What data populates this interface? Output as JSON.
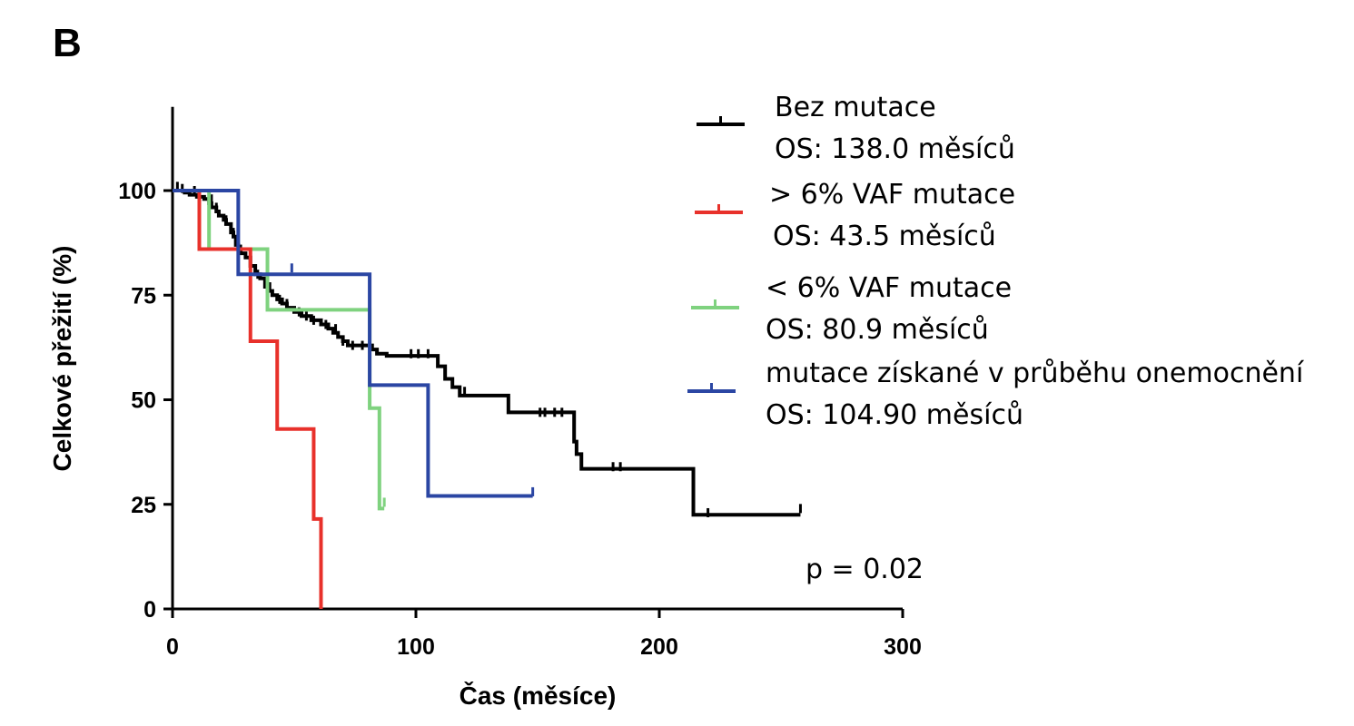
{
  "panel_label": "B",
  "p_value_text": "p = 0.02",
  "chart_data": {
    "type": "line",
    "subtype": "kaplan-meier",
    "title": "",
    "xlabel": "Čas  (měsíce)",
    "ylabel": "Celkové přežití (%)",
    "xlim": [
      0,
      300
    ],
    "ylim": [
      0,
      120
    ],
    "xticks": [
      0,
      100,
      200,
      300
    ],
    "yticks": [
      0,
      25,
      50,
      75,
      100
    ],
    "grid": false,
    "legend_position": "top-right",
    "series": [
      {
        "name": "Bez mutace",
        "stat": "OS: 138.0 měsíců",
        "color": "#000000",
        "steps": [
          [
            0,
            100
          ],
          [
            5,
            99.5
          ],
          [
            7,
            99
          ],
          [
            10,
            98.5
          ],
          [
            13,
            98
          ],
          [
            15,
            97
          ],
          [
            16,
            96
          ],
          [
            18,
            95
          ],
          [
            19,
            94
          ],
          [
            21,
            93
          ],
          [
            22,
            92
          ],
          [
            24,
            90
          ],
          [
            25,
            89
          ],
          [
            26,
            87
          ],
          [
            27,
            86
          ],
          [
            28,
            85
          ],
          [
            30,
            84
          ],
          [
            32,
            82
          ],
          [
            34,
            80
          ],
          [
            36,
            79
          ],
          [
            38,
            77
          ],
          [
            39,
            76
          ],
          [
            41,
            75
          ],
          [
            43,
            74
          ],
          [
            45,
            73
          ],
          [
            47,
            72
          ],
          [
            50,
            71
          ],
          [
            53,
            70
          ],
          [
            57,
            69
          ],
          [
            61,
            68
          ],
          [
            64,
            67
          ],
          [
            66,
            66
          ],
          [
            68,
            65
          ],
          [
            70,
            64
          ],
          [
            72,
            63
          ],
          [
            82,
            62
          ],
          [
            84,
            61
          ],
          [
            88,
            60.5
          ],
          [
            109,
            58
          ],
          [
            112,
            55
          ],
          [
            115,
            53
          ],
          [
            118,
            51
          ],
          [
            138,
            47
          ],
          [
            165,
            40
          ],
          [
            166,
            37
          ],
          [
            168,
            33.5
          ],
          [
            214,
            22.5
          ],
          [
            258,
            22.5
          ]
        ],
        "censors": [
          [
            2,
            101
          ],
          [
            4,
            100.5
          ],
          [
            9,
            100
          ],
          [
            16,
            98
          ],
          [
            18,
            96
          ],
          [
            22,
            93
          ],
          [
            25,
            90
          ],
          [
            28,
            86
          ],
          [
            35,
            80
          ],
          [
            40,
            77
          ],
          [
            44,
            74
          ],
          [
            47,
            73
          ],
          [
            52,
            71
          ],
          [
            55,
            70
          ],
          [
            58,
            69
          ],
          [
            63,
            68
          ],
          [
            67,
            67
          ],
          [
            70,
            64
          ],
          [
            74,
            63
          ],
          [
            78,
            63
          ],
          [
            98,
            61
          ],
          [
            101,
            61
          ],
          [
            105,
            61
          ],
          [
            120,
            52
          ],
          [
            151,
            47
          ],
          [
            153,
            47
          ],
          [
            157,
            47
          ],
          [
            160,
            47
          ],
          [
            181,
            34
          ],
          [
            184,
            34
          ],
          [
            220,
            23
          ],
          [
            258,
            24
          ]
        ]
      },
      {
        "name": "> 6% VAF mutace",
        "stat": "OS: 43.5 měsíců",
        "color": "#e8312b",
        "steps": [
          [
            0,
            100
          ],
          [
            11,
            100
          ],
          [
            11,
            86
          ],
          [
            15,
            86
          ],
          [
            15,
            100
          ],
          [
            11,
            100
          ]
        ],
        "km": [
          [
            0,
            100
          ],
          [
            11,
            86
          ],
          [
            32,
            64
          ],
          [
            43,
            43
          ],
          [
            58,
            21.5
          ],
          [
            61,
            0
          ]
        ],
        "censors": []
      },
      {
        "name": "< 6% VAF mutace",
        "stat": "OS: 80.9 měsíců",
        "color": "#7fd27f",
        "km": [
          [
            0,
            100
          ],
          [
            15,
            86
          ],
          [
            39,
            71.5
          ],
          [
            81,
            48
          ],
          [
            85,
            24
          ],
          [
            87,
            24
          ]
        ],
        "censors": [
          [
            87,
            25.5
          ]
        ]
      },
      {
        "name": "mutace získané v průběhu onemocnění",
        "stat": "OS: 104.90 měsíců",
        "color": "#2b46a3",
        "km": [
          [
            0,
            100
          ],
          [
            27,
            80
          ],
          [
            81,
            53.5
          ],
          [
            105,
            27
          ],
          [
            148,
            27
          ]
        ],
        "censors": [
          [
            49,
            81.5
          ],
          [
            148,
            28
          ]
        ]
      }
    ]
  }
}
